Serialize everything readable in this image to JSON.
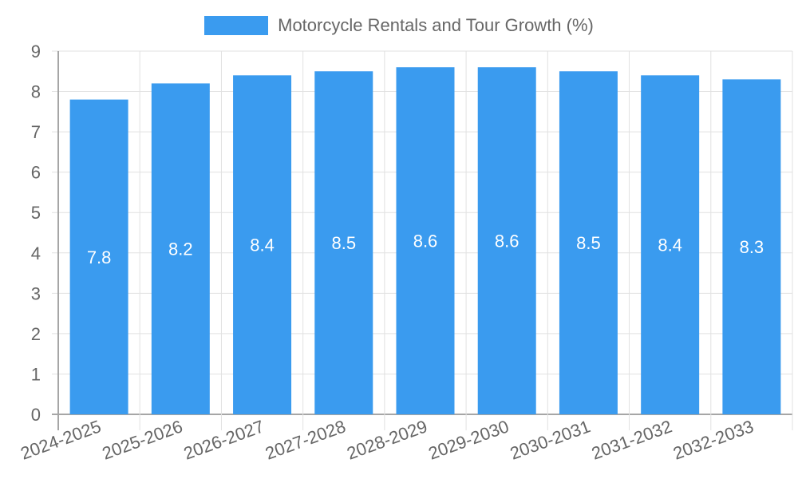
{
  "chart_data": {
    "type": "bar",
    "title": "",
    "legend": [
      {
        "label": "Motorcycle Rentals and Tour Growth (%)",
        "color": "#3a9bef"
      }
    ],
    "legend_position": "top",
    "categories": [
      "2024-2025",
      "2025-2026",
      "2026-2027",
      "2027-2028",
      "2028-2029",
      "2029-2030",
      "2030-2031",
      "2031-2032",
      "2032-2033"
    ],
    "series": [
      {
        "name": "Motorcycle Rentals and Tour Growth (%)",
        "values": [
          7.8,
          8.2,
          8.4,
          8.5,
          8.6,
          8.6,
          8.5,
          8.4,
          8.3
        ]
      }
    ],
    "data_labels": [
      "7.8",
      "8.2",
      "8.4",
      "8.5",
      "8.6",
      "8.6",
      "8.5",
      "8.4",
      "8.3"
    ],
    "xlabel": "",
    "ylabel": "",
    "ylim": [
      0,
      9
    ],
    "yticks": [
      0,
      1,
      2,
      3,
      4,
      5,
      6,
      7,
      8,
      9
    ],
    "grid": true
  },
  "colors": {
    "bar": "#3a9bef",
    "grid": "#e1e1e1",
    "axis": "#a6a6a6",
    "tick_text": "#666666",
    "data_label": "#ffffff"
  }
}
